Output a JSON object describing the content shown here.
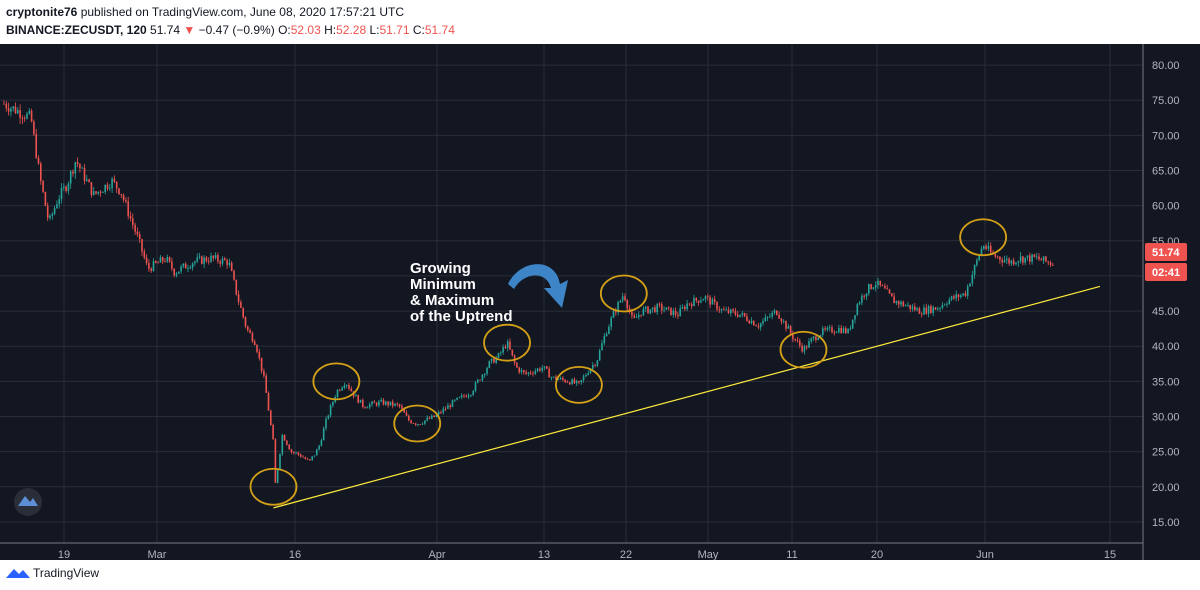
{
  "header": {
    "user": "cryptonite76",
    "publish_text": " published on TradingView.com, June 08, 2020 17:57:21 UTC",
    "symbol": "BINANCE:ZECUSDT, 120",
    "last": "51.74",
    "arrow": "▼",
    "change": "−0.47 (−0.9%)",
    "o_label": "O:",
    "o_val": "52.03",
    "h_label": "H:",
    "h_val": "52.28",
    "l_label": "L:",
    "l_val": "51.71",
    "c_label": "C:",
    "c_val": "51.74"
  },
  "footer": {
    "brand": "TradingView",
    "logo_icon": "tradingview-logo-icon"
  },
  "chart_data": {
    "type": "candlestick",
    "title": "BINANCE:ZECUSDT, 120",
    "xlabel": "",
    "ylabel": "",
    "ylim": [
      12,
      83
    ],
    "y_ticks": [
      15,
      20,
      25,
      30,
      35,
      40,
      45,
      50,
      55,
      60,
      65,
      70,
      75,
      80
    ],
    "y_tick_labels": [
      "15.00",
      "20.00",
      "25.00",
      "30.00",
      "35.00",
      "40.00",
      "45.00",
      "50.00",
      "55.00",
      "60.00",
      "65.00",
      "70.00",
      "75.00",
      "80.00"
    ],
    "x_tick_labels": [
      "19",
      "Mar",
      "16",
      "Apr",
      "13",
      "22",
      "May",
      "11",
      "20",
      "Jun",
      "15"
    ],
    "price_path": [
      {
        "x": "Feb 12",
        "y": 74.5
      },
      {
        "x": "Feb 15",
        "y": 72.5
      },
      {
        "x": "Feb 16",
        "y": 64.0
      },
      {
        "x": "Feb 17",
        "y": 57.5
      },
      {
        "x": "Feb 18",
        "y": 61.0
      },
      {
        "x": "Feb 19",
        "y": 63.0
      },
      {
        "x": "Feb 20",
        "y": 66.5
      },
      {
        "x": "Feb 22",
        "y": 61.5
      },
      {
        "x": "Feb 24",
        "y": 63.5
      },
      {
        "x": "Feb 25",
        "y": 62.0
      },
      {
        "x": "Feb 27",
        "y": 55.0
      },
      {
        "x": "Feb 28",
        "y": 51.0
      },
      {
        "x": "Mar 1",
        "y": 52.5
      },
      {
        "x": "Mar 2",
        "y": 50.5
      },
      {
        "x": "Mar 4",
        "y": 52.0
      },
      {
        "x": "Mar 6",
        "y": 52.5
      },
      {
        "x": "Mar 8",
        "y": 52.0
      },
      {
        "x": "Mar 9",
        "y": 47.0
      },
      {
        "x": "Mar 10",
        "y": 42.5
      },
      {
        "x": "Mar 11",
        "y": 40.5
      },
      {
        "x": "Mar 12",
        "y": 35.0
      },
      {
        "x": "Mar 13",
        "y": 26.0
      },
      {
        "x": "Mar 13",
        "y": 18.5
      },
      {
        "x": "Mar 14",
        "y": 27.5
      },
      {
        "x": "Mar 15",
        "y": 25.0
      },
      {
        "x": "Mar 16",
        "y": 24.5
      },
      {
        "x": "Mar 17",
        "y": 23.5
      },
      {
        "x": "Mar 18",
        "y": 25.5
      },
      {
        "x": "Mar 19",
        "y": 30.0
      },
      {
        "x": "Mar 20",
        "y": 33.5
      },
      {
        "x": "Mar 21",
        "y": 35.0
      },
      {
        "x": "Mar 22",
        "y": 33.0
      },
      {
        "x": "Mar 23",
        "y": 31.5
      },
      {
        "x": "Mar 25",
        "y": 32.0
      },
      {
        "x": "Mar 27",
        "y": 31.5
      },
      {
        "x": "Mar 28",
        "y": 29.5
      },
      {
        "x": "Mar 29",
        "y": 29.0
      },
      {
        "x": "Mar 30",
        "y": 29.5
      },
      {
        "x": "Mar 31",
        "y": 30.0
      },
      {
        "x": "Apr 2",
        "y": 32.0
      },
      {
        "x": "Apr 4",
        "y": 33.5
      },
      {
        "x": "Apr 6",
        "y": 37.5
      },
      {
        "x": "Apr 7",
        "y": 38.5
      },
      {
        "x": "Apr 8",
        "y": 40.5
      },
      {
        "x": "Apr 9",
        "y": 37.0
      },
      {
        "x": "Apr 10",
        "y": 36.0
      },
      {
        "x": "Apr 12",
        "y": 37.0
      },
      {
        "x": "Apr 13",
        "y": 35.5
      },
      {
        "x": "Apr 15",
        "y": 35.0
      },
      {
        "x": "Apr 16",
        "y": 34.5
      },
      {
        "x": "Apr 17",
        "y": 36.5
      },
      {
        "x": "Apr 18",
        "y": 38.0
      },
      {
        "x": "Apr 19",
        "y": 42.0
      },
      {
        "x": "Apr 20",
        "y": 45.0
      },
      {
        "x": "Apr 21",
        "y": 47.5
      },
      {
        "x": "Apr 22",
        "y": 43.5
      },
      {
        "x": "Apr 23",
        "y": 45.0
      },
      {
        "x": "Apr 25",
        "y": 45.5
      },
      {
        "x": "Apr 27",
        "y": 44.5
      },
      {
        "x": "Apr 28",
        "y": 46.0
      },
      {
        "x": "Apr 30",
        "y": 47.0
      },
      {
        "x": "May 2",
        "y": 45.0
      },
      {
        "x": "May 4",
        "y": 44.5
      },
      {
        "x": "May 6",
        "y": 43.0
      },
      {
        "x": "May 7",
        "y": 44.0
      },
      {
        "x": "May 8",
        "y": 45.0
      },
      {
        "x": "May 9",
        "y": 43.0
      },
      {
        "x": "May 10",
        "y": 41.0
      },
      {
        "x": "May 11",
        "y": 39.5
      },
      {
        "x": "May 12",
        "y": 41.0
      },
      {
        "x": "May 13",
        "y": 42.0
      },
      {
        "x": "May 15",
        "y": 42.5
      },
      {
        "x": "May 16",
        "y": 42.0
      },
      {
        "x": "May 17",
        "y": 46.0
      },
      {
        "x": "May 18",
        "y": 48.0
      },
      {
        "x": "May 19",
        "y": 49.0
      },
      {
        "x": "May 20",
        "y": 48.0
      },
      {
        "x": "May 21",
        "y": 46.5
      },
      {
        "x": "May 22",
        "y": 46.0
      },
      {
        "x": "May 24",
        "y": 45.0
      },
      {
        "x": "May 26",
        "y": 45.5
      },
      {
        "x": "May 27",
        "y": 46.5
      },
      {
        "x": "May 29",
        "y": 47.5
      },
      {
        "x": "May 30",
        "y": 51.0
      },
      {
        "x": "May 31",
        "y": 54.5
      },
      {
        "x": "Jun 1",
        "y": 53.0
      },
      {
        "x": "Jun 2",
        "y": 52.5
      },
      {
        "x": "Jun 3",
        "y": 52.0
      },
      {
        "x": "Jun 4",
        "y": 52.5
      },
      {
        "x": "Jun 6",
        "y": 52.5
      },
      {
        "x": "Jun 7",
        "y": 52.0
      },
      {
        "x": "Jun 8",
        "y": 51.74
      }
    ],
    "trendline": {
      "start": {
        "x": "Mar 13",
        "y": 17.0
      },
      "end": {
        "x": "Jun 13",
        "y": 48.5
      },
      "color": "#ffeb3b"
    },
    "highlight_circles": [
      {
        "x": "Mar 13",
        "y": 20.0
      },
      {
        "x": "Mar 20",
        "y": 35.0
      },
      {
        "x": "Mar 29",
        "y": 29.0
      },
      {
        "x": "Apr 8",
        "y": 40.5
      },
      {
        "x": "Apr 16",
        "y": 34.5
      },
      {
        "x": "Apr 21",
        "y": 47.5
      },
      {
        "x": "May 11",
        "y": 39.5
      },
      {
        "x": "May 31",
        "y": 55.5
      }
    ],
    "annotation": {
      "lines": [
        "Growing",
        "Minimum",
        "& Maximum",
        "of the Uptrend"
      ],
      "x": "Apr 6",
      "y": 55.0
    },
    "arrow_icon": "curved-arrow-icon",
    "last_price_tag": "51.74",
    "countdown_tag": "02:41",
    "colors": {
      "up": "#26a69a",
      "down": "#ef5350",
      "background": "#131722",
      "grid": "#2a2e39",
      "circle": "#d4a017",
      "arrow": "#3d85c6",
      "price_tag": "#ef5350"
    },
    "grid": true
  }
}
